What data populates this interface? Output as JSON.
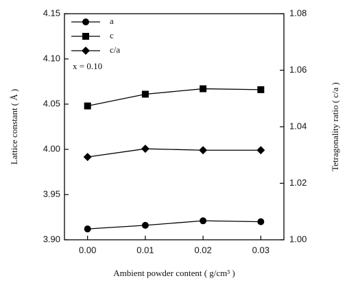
{
  "chart_data": {
    "type": "line",
    "x_label": "Ambient powder content ( g/cm³ )",
    "y_label": "Lattice constant ( Å )",
    "y2_label": "Tetragonality ratio ( c/a )",
    "annotation": "x = 0.10",
    "x": [
      0.0,
      0.01,
      0.02,
      0.03
    ],
    "xlim": [
      -0.004,
      0.034
    ],
    "xticks": [
      {
        "value": 0,
        "label": "0.00"
      },
      0.01,
      0.02,
      0.03
    ],
    "ylim": [
      3.9,
      4.15
    ],
    "yticks": [
      {
        "value": 3.9,
        "label": "3.90"
      },
      3.95,
      {
        "value": 4.0,
        "label": "4.00"
      },
      4.05,
      {
        "value": 4.1,
        "label": "4.10"
      },
      4.15
    ],
    "y2lim": [
      1.0,
      1.08
    ],
    "y2ticks": [
      {
        "value": 1,
        "label": "1.00"
      },
      1.02,
      1.04,
      1.06,
      1.08
    ],
    "series": [
      {
        "name": "a",
        "marker": "circle",
        "color": "#000000",
        "values": [
          3.912,
          3.916,
          3.921,
          3.92
        ]
      },
      {
        "name": "c",
        "marker": "square",
        "color": "#000000",
        "values": [
          4.048,
          4.061,
          4.067,
          4.066
        ]
      },
      {
        "name": "c/a",
        "marker": "diamond",
        "color": "#000000",
        "axis": "y2",
        "values": [
          1.0293,
          1.0322,
          1.0317,
          1.0317
        ]
      }
    ]
  }
}
